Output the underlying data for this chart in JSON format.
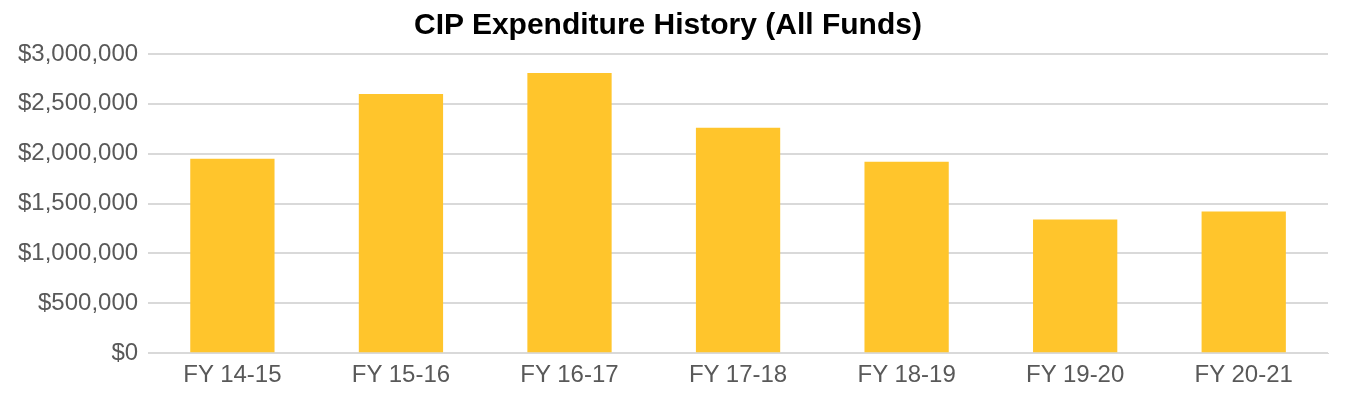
{
  "chart_data": {
    "type": "bar",
    "title": "CIP Expenditure History (All Funds)",
    "categories": [
      "FY 14-15",
      "FY 15-16",
      "FY 16-17",
      "FY 17-18",
      "FY 18-19",
      "FY 19-20",
      "FY 20-21"
    ],
    "values": [
      1950000,
      2600000,
      2810000,
      2260000,
      1920000,
      1340000,
      1420000
    ],
    "color": "#ffc52c",
    "ylim": [
      0,
      3000000
    ],
    "yticks": [
      {
        "value": 0,
        "label": "$0"
      },
      {
        "value": 500000,
        "label": "$500,000"
      },
      {
        "value": 1000000,
        "label": "$1,000,000"
      },
      {
        "value": 1500000,
        "label": "$1,500,000"
      },
      {
        "value": 2000000,
        "label": "$2,000,000"
      },
      {
        "value": 2500000,
        "label": "$2,500,000"
      },
      {
        "value": 3000000,
        "label": "$3,000,000"
      }
    ],
    "grid": "y"
  }
}
